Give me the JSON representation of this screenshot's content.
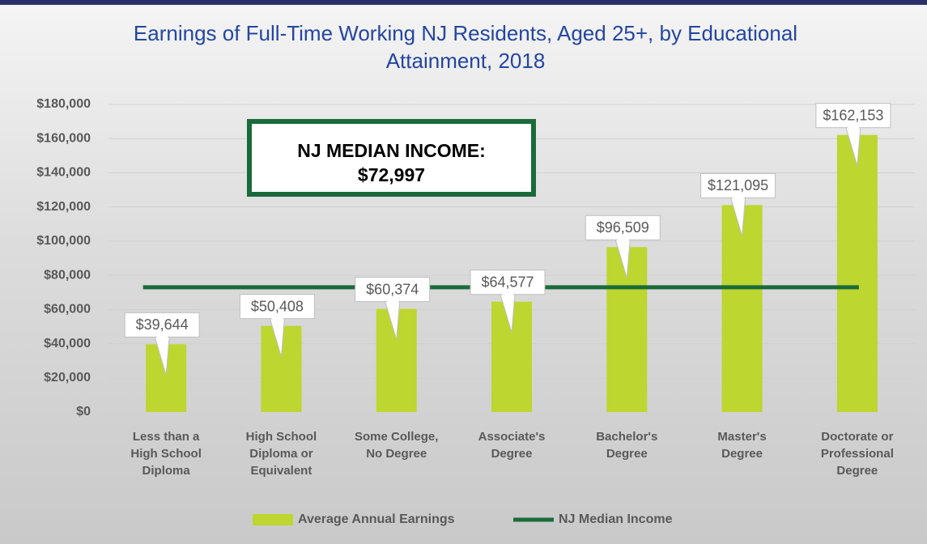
{
  "chart_data": {
    "type": "bar",
    "title": "Earnings of Full-Time Working NJ Residents, Aged 25+, by Educational Attainment, 2018",
    "categories": [
      "Less than a\nHigh School\nDiploma",
      "High School\nDiploma or\nEquivalent",
      "Some College,\nNo Degree",
      "Associate's\nDegree",
      "Bachelor's\nDegree",
      "Master's\nDegree",
      "Doctorate or\nProfessional\nDegree"
    ],
    "series": [
      {
        "name": "Average Annual Earnings",
        "type": "bar",
        "color": "#bdd630",
        "values": [
          39644,
          50408,
          60374,
          64577,
          96509,
          121095,
          162153
        ],
        "value_labels": [
          "$39,644",
          "$50,408",
          "$60,374",
          "$64,577",
          "$96,509",
          "$121,095",
          "$162,153"
        ]
      },
      {
        "name": "NJ Median Income",
        "type": "line",
        "color": "#1b6b3a",
        "value": 72997,
        "value_label": "$72,997"
      }
    ],
    "annotation": "NJ MEDIAN INCOME:",
    "ylim": [
      0,
      180000
    ],
    "yticks": [
      {
        "value": 0,
        "label": "$0"
      },
      {
        "value": 20000,
        "label": "$20,000"
      },
      {
        "value": 40000,
        "label": "$40,000"
      },
      {
        "value": 60000,
        "label": "$60,000"
      },
      {
        "value": 80000,
        "label": "$80,000"
      },
      {
        "value": 100000,
        "label": "$100,000"
      },
      {
        "value": 120000,
        "label": "$120,000"
      },
      {
        "value": 140000,
        "label": "$140,000"
      },
      {
        "value": 160000,
        "label": "$160,000"
      },
      {
        "value": 180000,
        "label": "$180,000"
      }
    ],
    "grid": true,
    "legend": "bottom"
  }
}
